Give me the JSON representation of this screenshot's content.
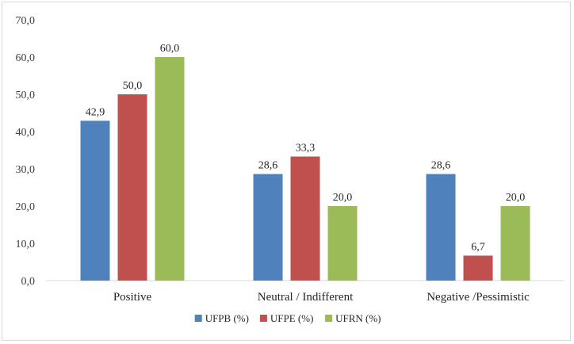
{
  "chart_data": {
    "type": "bar",
    "categories": [
      "Positive",
      "Neutral / Indifferent",
      "Negative /Pessimistic"
    ],
    "series": [
      {
        "name": "UFPB (%)",
        "values": [
          42.9,
          28.6,
          28.6
        ],
        "color": "#4f81bd",
        "labels": [
          "42,9",
          "28,6",
          "28,6"
        ]
      },
      {
        "name": "UFPE (%)",
        "values": [
          50.0,
          33.3,
          6.7
        ],
        "color": "#c0504d",
        "labels": [
          "50,0",
          "33,3",
          "6,7"
        ]
      },
      {
        "name": "UFRN (%)",
        "values": [
          60.0,
          20.0,
          20.0
        ],
        "color": "#9bbb59",
        "labels": [
          "60,0",
          "20,0",
          "20,0"
        ]
      }
    ],
    "ylim": [
      0,
      70
    ],
    "yticks": [
      0,
      10,
      20,
      30,
      40,
      50,
      60,
      70
    ],
    "ytick_labels": [
      "0,0",
      "10,0",
      "20,0",
      "30,0",
      "40,0",
      "50,0",
      "60,0",
      "70,0"
    ],
    "gridlines": false,
    "legend_position": "bottom"
  }
}
